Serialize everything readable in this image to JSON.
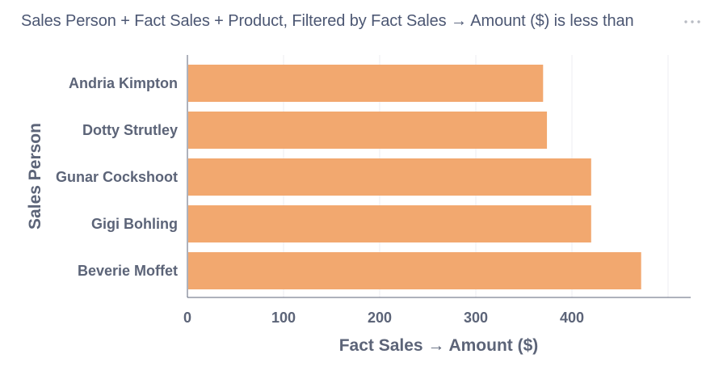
{
  "header": {
    "title": "Sales Person + Fact Sales + Product, Filtered by Fact Sales → Amount ($) is less than",
    "more_icon": "ellipsis-icon"
  },
  "colors": {
    "bar": "#f2a86f",
    "axis": "#5c6478",
    "grid": "#eceef2",
    "title": "#4c5773"
  },
  "chart_data": {
    "type": "bar",
    "orientation": "horizontal",
    "categories": [
      "Andria Kimpton",
      "Dotty Strutley",
      "Gunar Cockshoot",
      "Gigi Bohling",
      "Beverie Moffet"
    ],
    "values": [
      370,
      374,
      420,
      420,
      472
    ],
    "xlabel": "Fact Sales → Amount ($)",
    "ylabel": "Sales Person",
    "xlim": [
      0,
      500
    ],
    "xticks": [
      0,
      100,
      200,
      300,
      400
    ],
    "grid": true,
    "legend": "none"
  }
}
